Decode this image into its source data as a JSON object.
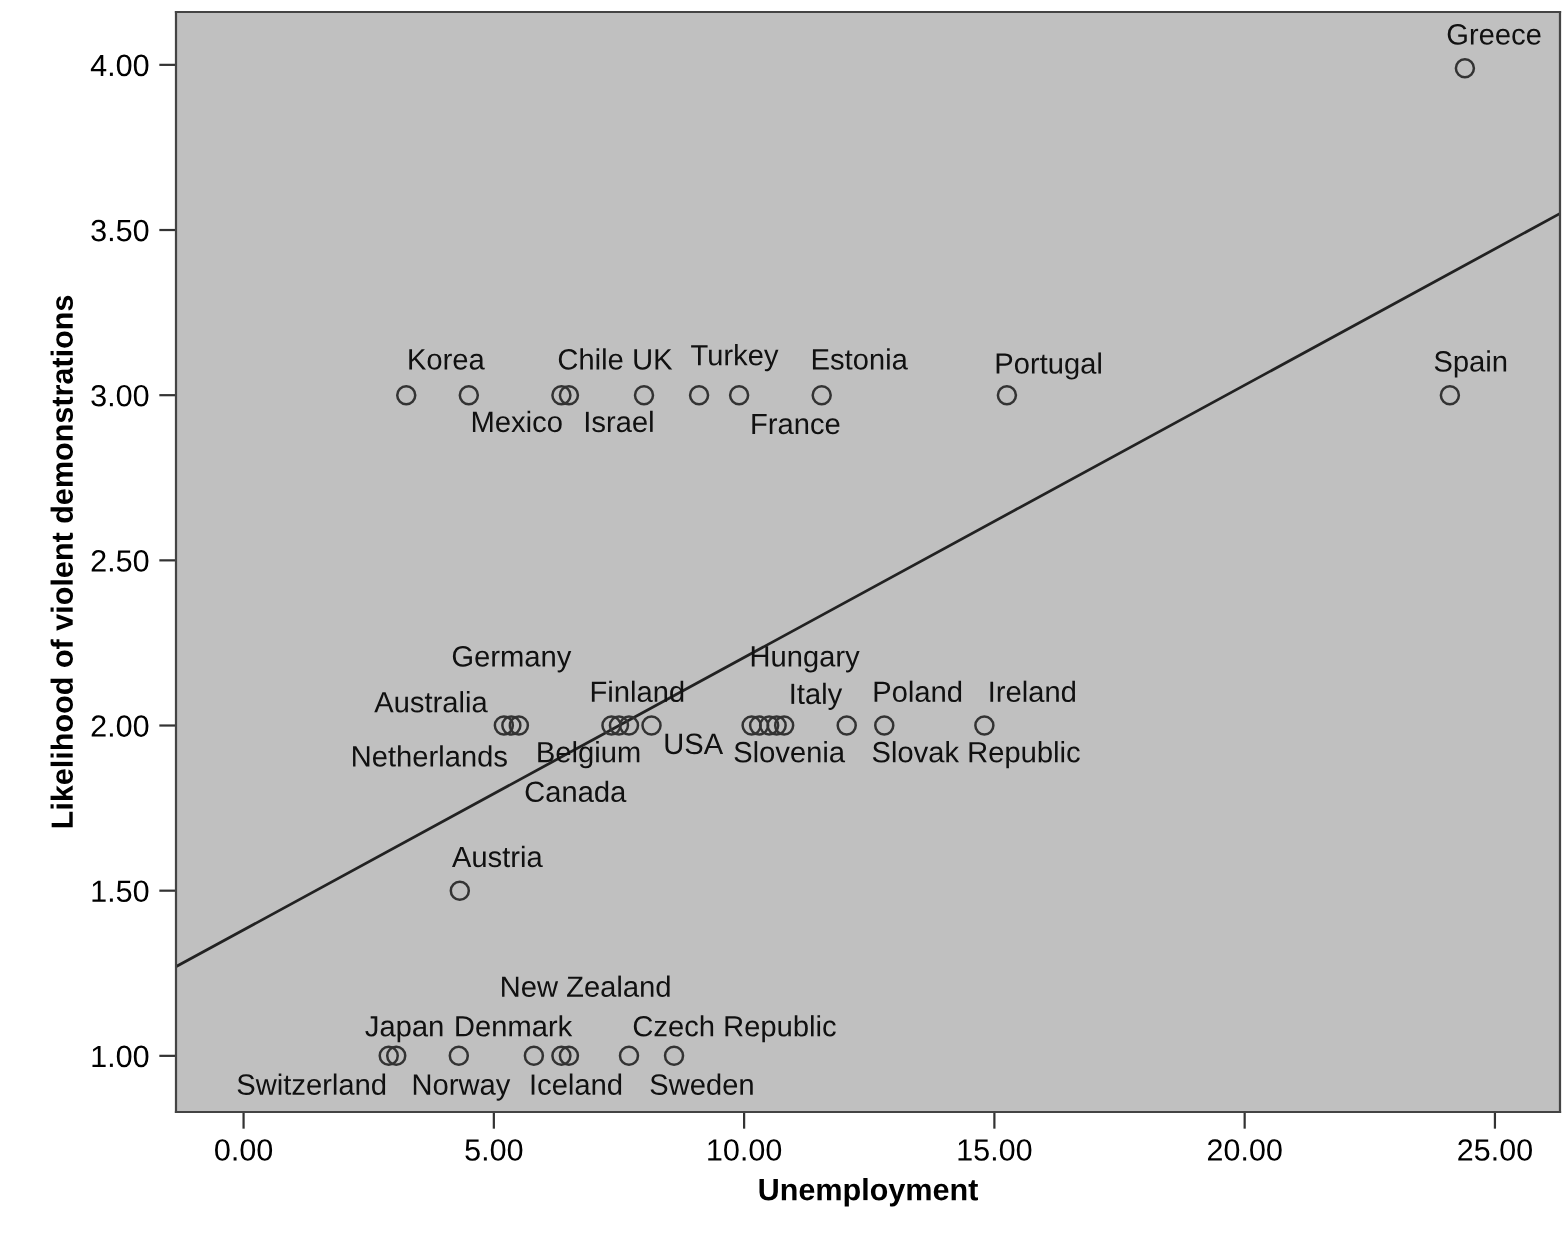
{
  "chart_data": {
    "type": "scatter",
    "xlabel": "Unemployment",
    "ylabel": "Likelihood of violent demonstrations",
    "xlim": [
      -1.35,
      26.3
    ],
    "ylim": [
      0.83,
      4.16
    ],
    "xticks": [
      {
        "value": 0,
        "label": "0.00"
      },
      {
        "value": 5,
        "label": "5.00"
      },
      {
        "value": 10,
        "label": "10.00"
      },
      {
        "value": 15,
        "label": "15.00"
      },
      {
        "value": 20,
        "label": "20.00"
      },
      {
        "value": 25,
        "label": "25.00"
      }
    ],
    "yticks": [
      {
        "value": 1,
        "label": "1.00"
      },
      {
        "value": 1.5,
        "label": "1.50"
      },
      {
        "value": 2,
        "label": "2.00"
      },
      {
        "value": 2.5,
        "label": "2.50"
      },
      {
        "value": 3,
        "label": "3.00"
      },
      {
        "value": 3.5,
        "label": "3.50"
      },
      {
        "value": 4,
        "label": "4.00"
      }
    ],
    "grid": false,
    "series": [
      {
        "marker": "circle",
        "color": "#333333",
        "x": [
          24.4,
          3.25,
          4.5,
          6.35,
          6.5,
          8.0,
          9.1,
          9.9,
          11.55,
          15.25,
          24.1,
          5.2,
          5.35,
          5.5,
          7.35,
          7.5,
          7.7,
          8.15,
          10.15,
          10.3,
          10.5,
          10.65,
          10.8,
          12.05,
          12.8,
          14.8,
          4.32,
          2.9,
          3.05,
          4.3,
          5.8,
          6.35,
          6.5,
          7.7,
          8.6
        ],
        "values": [
          3.99,
          3,
          3,
          3,
          3,
          3,
          3,
          3,
          3,
          3,
          3,
          2,
          2,
          2,
          2,
          2,
          2,
          2,
          2,
          2,
          2,
          2,
          2,
          2,
          2,
          2,
          1.5,
          1,
          1,
          1,
          1,
          1,
          1,
          1,
          1
        ]
      },
      {
        "type": "line",
        "color": "#222222",
        "x": [
          -1.35,
          26.3
        ],
        "values": [
          1.27,
          3.55
        ]
      }
    ],
    "annotations": [
      {
        "text": "Greece",
        "x": 24.4,
        "y": 3.99
      },
      {
        "text": "Korea",
        "x": 3.25,
        "y": 3
      },
      {
        "text": "Mexico",
        "x": 4.5,
        "y": 3
      },
      {
        "text": "Chile",
        "x": 6.35,
        "y": 3
      },
      {
        "text": "Israel",
        "x": 6.5,
        "y": 3
      },
      {
        "text": "UK",
        "x": 8.0,
        "y": 3
      },
      {
        "text": "Turkey",
        "x": 9.1,
        "y": 3
      },
      {
        "text": "France",
        "x": 9.9,
        "y": 3
      },
      {
        "text": "Estonia",
        "x": 11.55,
        "y": 3
      },
      {
        "text": "Portugal",
        "x": 15.25,
        "y": 3
      },
      {
        "text": "Spain",
        "x": 24.1,
        "y": 3
      },
      {
        "text": "Australia",
        "x": 5.2,
        "y": 2
      },
      {
        "text": "Germany",
        "x": 5.35,
        "y": 2
      },
      {
        "text": "Netherlands",
        "x": 5.5,
        "y": 2
      },
      {
        "text": "Belgium",
        "x": 7.35,
        "y": 2
      },
      {
        "text": "Canada",
        "x": 7.5,
        "y": 2
      },
      {
        "text": "Finland",
        "x": 7.7,
        "y": 2
      },
      {
        "text": "USA",
        "x": 8.15,
        "y": 2
      },
      {
        "text": "Slovenia",
        "x": 10.15,
        "y": 2
      },
      {
        "text": "Hungary",
        "x": 10.5,
        "y": 2
      },
      {
        "text": "Italy",
        "x": 12.05,
        "y": 2
      },
      {
        "text": "Poland",
        "x": 12.8,
        "y": 2
      },
      {
        "text": "Ireland",
        "x": 14.8,
        "y": 2
      },
      {
        "text": "Slovak Republic",
        "x": 14.8,
        "y": 2
      },
      {
        "text": "Austria",
        "x": 4.32,
        "y": 1.5
      },
      {
        "text": "Switzerland",
        "x": 2.9,
        "y": 1
      },
      {
        "text": "Japan",
        "x": 3.05,
        "y": 1
      },
      {
        "text": "Norway",
        "x": 4.3,
        "y": 1
      },
      {
        "text": "Denmark",
        "x": 5.8,
        "y": 1
      },
      {
        "text": "Iceland",
        "x": 6.35,
        "y": 1
      },
      {
        "text": "New Zealand",
        "x": 6.5,
        "y": 1
      },
      {
        "text": "Sweden",
        "x": 7.7,
        "y": 1
      },
      {
        "text": "Czech Republic",
        "x": 8.6,
        "y": 1
      }
    ]
  }
}
